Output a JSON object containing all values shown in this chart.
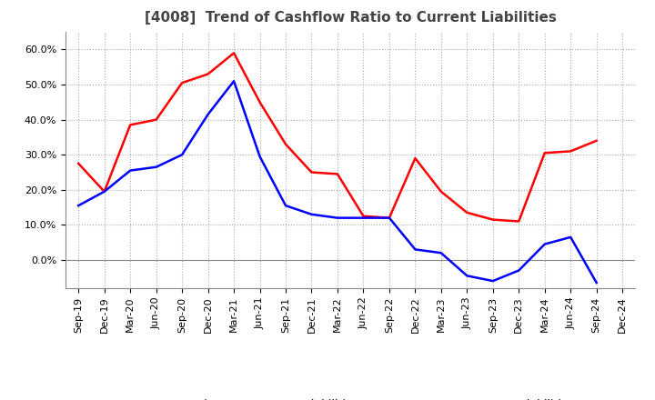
{
  "title": "[4008]  Trend of Cashflow Ratio to Current Liabilities",
  "x_labels": [
    "Sep-19",
    "Dec-19",
    "Mar-20",
    "Jun-20",
    "Sep-20",
    "Dec-20",
    "Mar-21",
    "Jun-21",
    "Sep-21",
    "Dec-21",
    "Mar-22",
    "Jun-22",
    "Sep-22",
    "Dec-22",
    "Mar-23",
    "Jun-23",
    "Sep-23",
    "Dec-23",
    "Mar-24",
    "Jun-24",
    "Sep-24",
    "Dec-24"
  ],
  "operating_cf": [
    0.275,
    0.195,
    0.385,
    0.4,
    0.505,
    0.53,
    0.59,
    0.45,
    0.33,
    0.25,
    0.245,
    0.125,
    0.12,
    0.29,
    0.195,
    0.135,
    0.115,
    0.11,
    0.305,
    0.31,
    0.34,
    null
  ],
  "free_cf": [
    0.155,
    0.195,
    0.255,
    0.265,
    0.3,
    0.415,
    0.51,
    0.295,
    0.155,
    0.13,
    0.12,
    0.12,
    0.12,
    0.03,
    0.02,
    -0.045,
    -0.06,
    -0.03,
    0.045,
    0.065,
    -0.065,
    null
  ],
  "ylim": [
    -0.08,
    0.65
  ],
  "yticks": [
    0.0,
    0.1,
    0.2,
    0.3,
    0.4,
    0.5,
    0.6
  ],
  "operating_color": "#FF0000",
  "free_color": "#0000FF",
  "background_color": "#FFFFFF",
  "grid_color": "#AAAAAA",
  "title_fontsize": 11,
  "tick_fontsize": 8
}
